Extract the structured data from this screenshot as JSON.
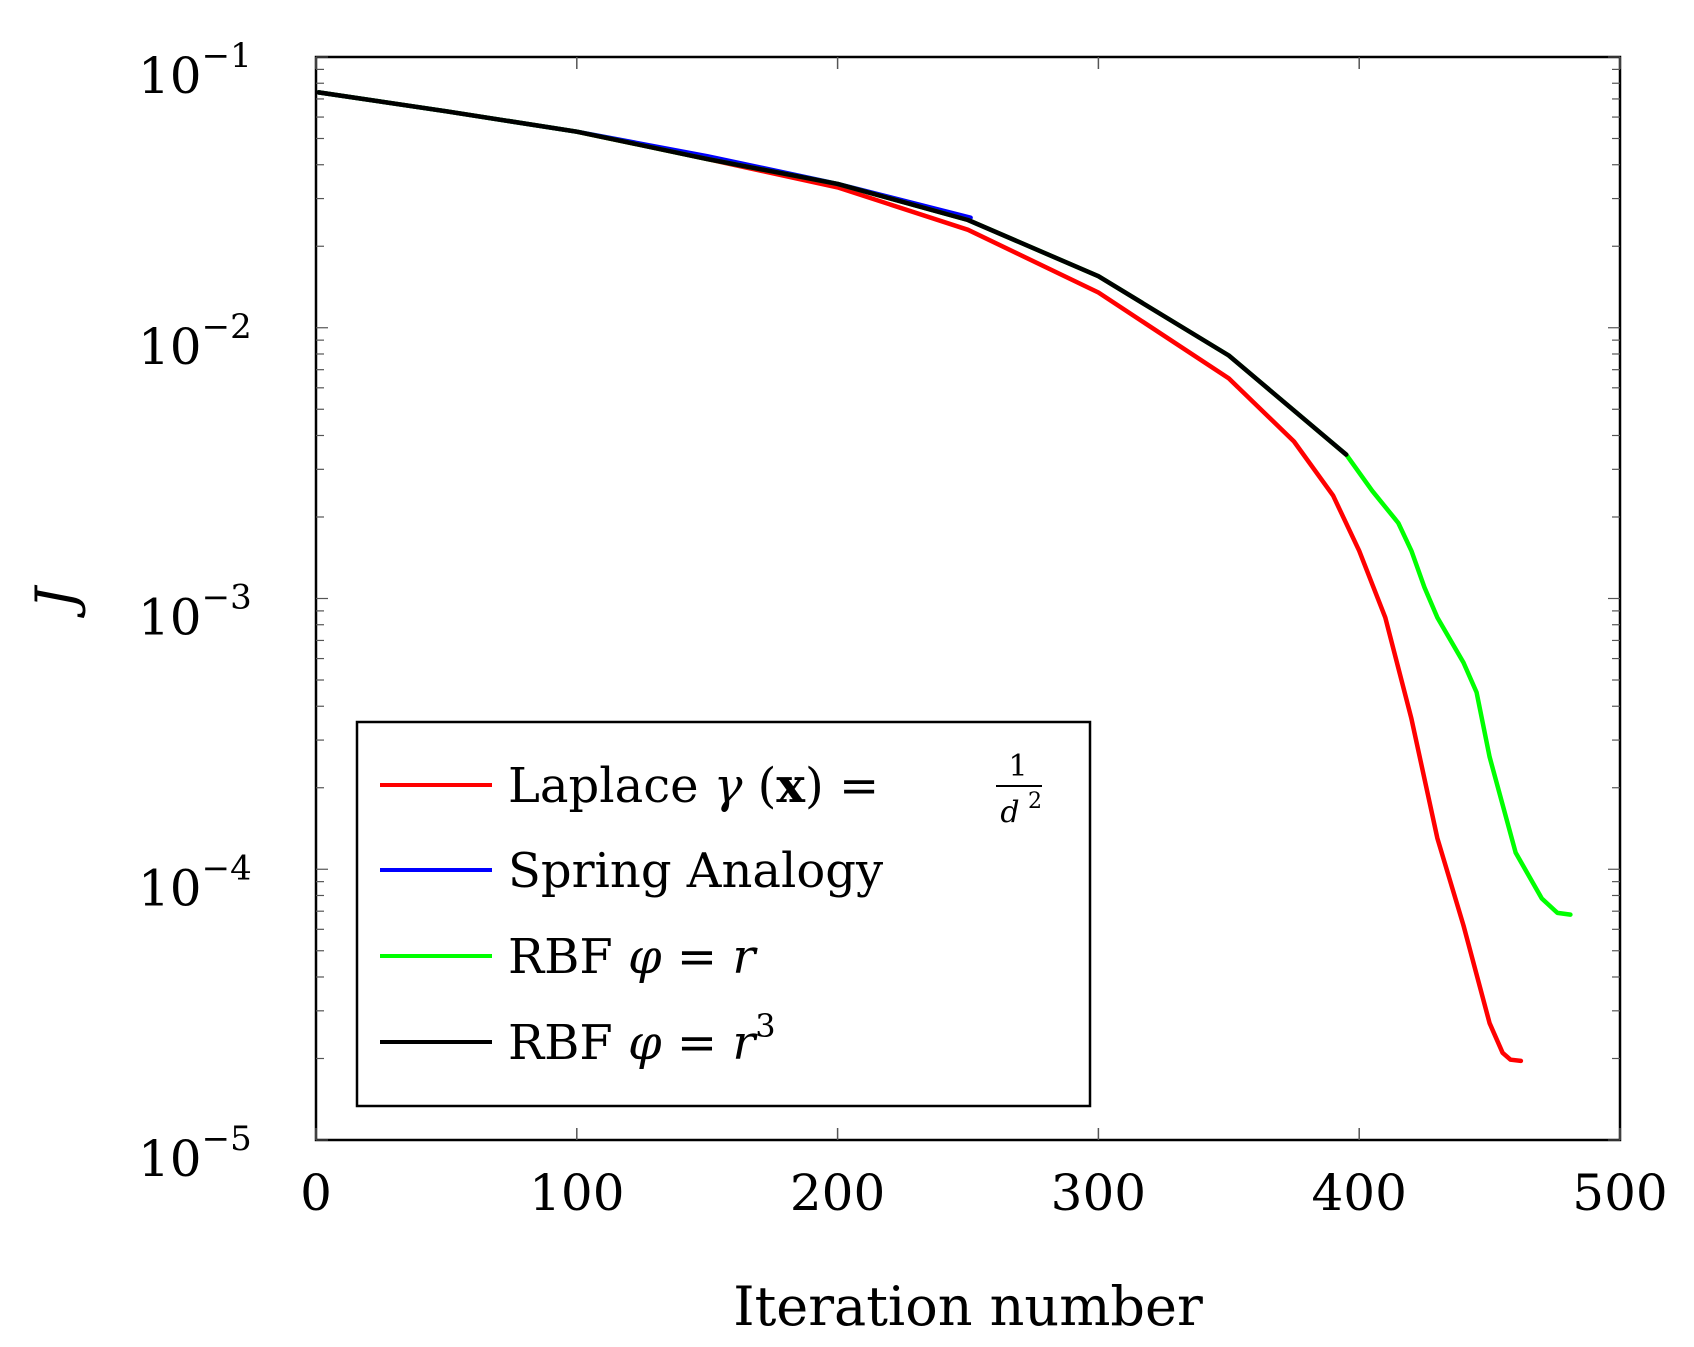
{
  "chart_data": {
    "type": "line",
    "xlabel": "Iteration number",
    "ylabel": "J",
    "xlim": [
      0,
      500
    ],
    "ylim": [
      1e-05,
      0.1
    ],
    "yscale": "log",
    "grid": false,
    "legend_position": "bottom-left",
    "x_ticks": [
      "0",
      "100",
      "200",
      "300",
      "400",
      "500"
    ],
    "y_ticks": [
      {
        "base": "10",
        "exp": "−1",
        "value": 0.1
      },
      {
        "base": "10",
        "exp": "−2",
        "value": 0.01
      },
      {
        "base": "10",
        "exp": "−3",
        "value": 0.001
      },
      {
        "base": "10",
        "exp": "−4",
        "value": 0.0001
      },
      {
        "base": "10",
        "exp": "−5",
        "value": 1e-05
      }
    ],
    "series": [
      {
        "name": "Laplace γ (x) = 1/d²",
        "color": "#ff0000",
        "x": [
          1,
          50,
          100,
          150,
          200,
          250,
          300,
          350,
          375,
          390,
          400,
          410,
          420,
          430,
          440,
          450,
          455,
          458,
          462
        ],
        "y": [
          0.074,
          0.063,
          0.053,
          0.042,
          0.033,
          0.023,
          0.0135,
          0.0065,
          0.0038,
          0.0024,
          0.0015,
          0.00085,
          0.00036,
          0.00013,
          6.2e-05,
          2.7e-05,
          2.1e-05,
          1.98e-05,
          1.96e-05
        ]
      },
      {
        "name": "Spring Analogy",
        "color": "#0000ff",
        "x": [
          1,
          50,
          100,
          150,
          200,
          251
        ],
        "y": [
          0.074,
          0.063,
          0.053,
          0.043,
          0.034,
          0.0255
        ]
      },
      {
        "name": "RBF φ = r",
        "color": "#00ff00",
        "x": [
          1,
          50,
          100,
          150,
          200,
          250,
          300,
          350,
          395,
          405,
          415,
          420,
          425,
          430,
          440,
          445,
          450,
          460,
          470,
          476,
          481
        ],
        "y": [
          0.074,
          0.063,
          0.053,
          0.042,
          0.034,
          0.025,
          0.0155,
          0.0079,
          0.0034,
          0.0025,
          0.0019,
          0.0015,
          0.0011,
          0.00085,
          0.00058,
          0.00045,
          0.00026,
          0.000115,
          7.8e-05,
          6.9e-05,
          6.8e-05
        ]
      },
      {
        "name": "RBF φ = r³",
        "color": "#000000",
        "x": [
          1,
          50,
          100,
          150,
          200,
          250,
          300,
          350,
          395
        ],
        "y": [
          0.074,
          0.063,
          0.053,
          0.042,
          0.034,
          0.025,
          0.0155,
          0.0079,
          0.0034
        ]
      }
    ]
  },
  "legend": {
    "items": [
      {
        "prefix": "Laplace ",
        "math": "γ",
        "suffix": " (",
        "bold": "x",
        "tail": ") = ",
        "frac_num": "1",
        "frac_den": "d",
        "frac_den_sup": "2"
      },
      {
        "text": "Spring Analogy"
      },
      {
        "prefix": "RBF ",
        "math": "φ",
        "suffix": " = ",
        "math2": "r",
        "sup": ""
      },
      {
        "prefix": "RBF ",
        "math": "φ",
        "suffix": " = ",
        "math2": "r",
        "sup": "3"
      }
    ]
  }
}
